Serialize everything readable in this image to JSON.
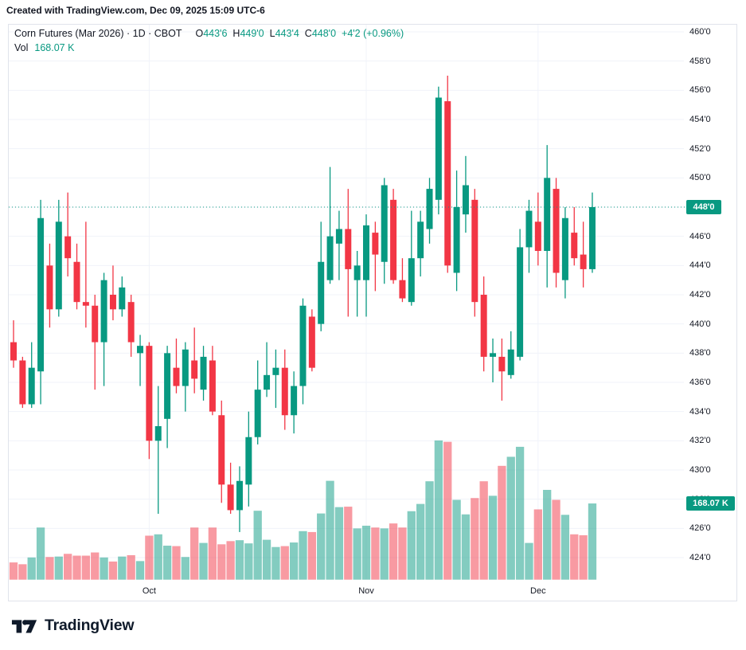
{
  "header": {
    "attribution": "Created with TradingView.com, Dec 09, 2025 15:09 UTC-6"
  },
  "legend": {
    "title": "Corn Futures (Mar 2026) · 1D · CBOT",
    "ohlc": [
      {
        "label": "O",
        "value": "443'6"
      },
      {
        "label": "H",
        "value": "449'0"
      },
      {
        "label": "L",
        "value": "443'4"
      },
      {
        "label": "C",
        "value": "448'0"
      }
    ],
    "change": "+4'2 (+0.96%)",
    "vol_label": "Vol",
    "vol_value": "168.07 K"
  },
  "price_scale": {
    "ticks": [
      {
        "label": "460'0",
        "value": 460
      },
      {
        "label": "458'0",
        "value": 458
      },
      {
        "label": "456'0",
        "value": 456
      },
      {
        "label": "454'0",
        "value": 454
      },
      {
        "label": "452'0",
        "value": 452
      },
      {
        "label": "450'0",
        "value": 450
      },
      {
        "label": "448'0",
        "value": 448
      },
      {
        "label": "446'0",
        "value": 446
      },
      {
        "label": "444'0",
        "value": 444
      },
      {
        "label": "442'0",
        "value": 442
      },
      {
        "label": "440'0",
        "value": 440
      },
      {
        "label": "438'0",
        "value": 438
      },
      {
        "label": "436'0",
        "value": 436
      },
      {
        "label": "434'0",
        "value": 434
      },
      {
        "label": "432'0",
        "value": 432
      },
      {
        "label": "430'0",
        "value": 430
      },
      {
        "label": "428'0",
        "value": 428
      },
      {
        "label": "426'0",
        "value": 426
      },
      {
        "label": "424'0",
        "value": 424
      }
    ],
    "last_price_badge": "448'0",
    "volume_badge": "168.07 K"
  },
  "time_scale": {
    "months": [
      {
        "label": "Oct",
        "candle_index": 15
      },
      {
        "label": "Nov",
        "candle_index": 39
      },
      {
        "label": "Dec",
        "candle_index": 58
      }
    ]
  },
  "footer": {
    "brand": "TradingView"
  },
  "colors": {
    "up": "#089981",
    "down": "#f23645",
    "vol_up": "rgba(8,153,129,0.5)",
    "vol_down": "rgba(242,54,69,0.5)",
    "grid": "#f0f3fa",
    "text": "#131722",
    "border": "#e0e3eb",
    "last_price_line": "#089981"
  },
  "chart_data": {
    "type": "candlestick",
    "title": "Corn Futures (Mar 2026) · 1D · CBOT",
    "xlabel": "",
    "ylabel": "price (cents per bushel, eighths)",
    "x_tick_labels": [
      "Oct",
      "Nov",
      "Dec"
    ],
    "y_axis_range": [
      423.5,
      460.6
    ],
    "grid": true,
    "last_close": 448.0,
    "last_close_label": "448'0",
    "last_volume_label": "168.07 K",
    "last_volume_k": 168.07,
    "candles_ohlc": [
      [
        438.75,
        440.25,
        437.0,
        437.5
      ],
      [
        437.5,
        437.75,
        434.25,
        434.5
      ],
      [
        434.5,
        438.75,
        434.25,
        437.0
      ],
      [
        436.75,
        448.5,
        434.5,
        447.25
      ],
      [
        444.0,
        445.5,
        439.75,
        441.0
      ],
      [
        441.0,
        448.5,
        440.5,
        447.0
      ],
      [
        446.0,
        449.0,
        443.25,
        444.5
      ],
      [
        444.25,
        445.5,
        441.0,
        441.5
      ],
      [
        441.5,
        447.0,
        439.75,
        441.25
      ],
      [
        441.25,
        442.0,
        435.5,
        438.75
      ],
      [
        438.75,
        443.5,
        435.75,
        443.0
      ],
      [
        442.0,
        444.0,
        440.25,
        441.0
      ],
      [
        441.0,
        443.25,
        440.5,
        442.5
      ],
      [
        441.5,
        442.0,
        437.75,
        438.75
      ],
      [
        438.0,
        439.25,
        435.75,
        438.5
      ],
      [
        438.5,
        438.75,
        430.75,
        432.0
      ],
      [
        432.0,
        435.75,
        427.0,
        433.0
      ],
      [
        433.5,
        438.5,
        431.5,
        438.0
      ],
      [
        437.0,
        439.0,
        435.25,
        435.75
      ],
      [
        435.75,
        438.75,
        434.0,
        438.25
      ],
      [
        437.5,
        439.75,
        435.25,
        436.25
      ],
      [
        435.5,
        438.5,
        434.75,
        437.75
      ],
      [
        437.5,
        438.5,
        433.75,
        434.0
      ],
      [
        433.75,
        434.75,
        427.75,
        429.0
      ],
      [
        429.0,
        430.5,
        427.0,
        427.25
      ],
      [
        427.25,
        430.25,
        425.75,
        429.25
      ],
      [
        429.0,
        434.0,
        427.5,
        432.25
      ],
      [
        432.25,
        437.5,
        431.75,
        435.5
      ],
      [
        435.5,
        438.75,
        435.0,
        436.5
      ],
      [
        436.5,
        438.25,
        434.25,
        437.0
      ],
      [
        437.0,
        438.25,
        432.75,
        433.75
      ],
      [
        433.75,
        436.75,
        432.5,
        435.75
      ],
      [
        435.75,
        441.75,
        434.5,
        441.25
      ],
      [
        440.5,
        441.0,
        436.75,
        437.0
      ],
      [
        440.0,
        447.0,
        439.5,
        444.25
      ],
      [
        443.0,
        450.75,
        442.75,
        446.0
      ],
      [
        445.5,
        447.75,
        443.0,
        446.5
      ],
      [
        446.5,
        449.25,
        440.5,
        443.75
      ],
      [
        443.0,
        445.0,
        440.5,
        444.0
      ],
      [
        443.0,
        447.5,
        440.5,
        446.75
      ],
      [
        446.25,
        447.0,
        442.25,
        444.75
      ],
      [
        444.25,
        450.0,
        442.75,
        449.5
      ],
      [
        448.5,
        449.25,
        442.75,
        443.0
      ],
      [
        443.0,
        444.5,
        441.5,
        441.75
      ],
      [
        441.5,
        447.75,
        441.25,
        444.5
      ],
      [
        444.5,
        447.75,
        443.25,
        447.0
      ],
      [
        446.5,
        450.0,
        445.5,
        449.25
      ],
      [
        448.5,
        456.25,
        447.5,
        455.5
      ],
      [
        455.25,
        457.0,
        443.5,
        444.0
      ],
      [
        443.5,
        450.5,
        442.25,
        448.0
      ],
      [
        447.5,
        451.5,
        446.25,
        449.5
      ],
      [
        448.5,
        449.25,
        440.5,
        441.5
      ],
      [
        442.0,
        443.25,
        436.75,
        437.75
      ],
      [
        437.75,
        439.0,
        436.0,
        438.0
      ],
      [
        437.75,
        439.0,
        434.75,
        436.75
      ],
      [
        436.5,
        439.5,
        436.25,
        438.25
      ],
      [
        437.75,
        446.5,
        437.5,
        445.25
      ],
      [
        445.25,
        448.5,
        443.5,
        447.75
      ],
      [
        447.0,
        449.0,
        444.0,
        445.0
      ],
      [
        445.0,
        452.25,
        442.5,
        450.0
      ],
      [
        449.25,
        450.0,
        442.5,
        443.5
      ],
      [
        443.0,
        448.0,
        441.75,
        447.25
      ],
      [
        446.25,
        448.0,
        444.0,
        444.5
      ],
      [
        444.75,
        447.0,
        442.5,
        443.75
      ],
      [
        443.75,
        449.0,
        443.5,
        448.0
      ]
    ],
    "volumes_k": [
      38,
      34,
      49,
      115,
      50,
      51,
      57,
      53,
      53,
      60,
      49,
      40,
      51,
      54,
      41,
      97,
      100,
      75,
      74,
      50,
      115,
      81,
      115,
      78,
      85,
      87,
      80,
      152,
      88,
      72,
      74,
      82,
      107,
      105,
      146,
      218,
      160,
      161,
      113,
      119,
      115,
      113,
      124,
      115,
      151,
      167,
      217,
      307,
      304,
      176,
      144,
      180,
      217,
      185,
      251,
      271,
      293,
      81,
      155,
      198,
      176,
      143,
      100,
      98,
      168.07
    ]
  }
}
